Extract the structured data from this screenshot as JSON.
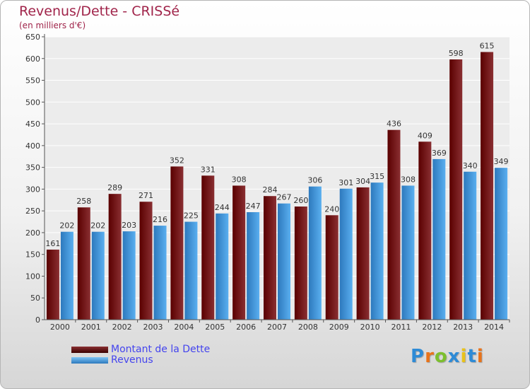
{
  "title": "Revenus/Dette - CRISSé",
  "subtitle": "(en milliers d'€)",
  "colors": {
    "dette_dark": "#5a0000",
    "dette_light": "#8a2f32",
    "revenus_dark": "#2d79bd",
    "revenus_light": "#5aaff0",
    "title": "#a0244a",
    "legend_text": "#4444ee"
  },
  "legend": {
    "items": [
      {
        "label": "Montant de la Dette",
        "color": "#7a1a1c"
      },
      {
        "label": "Revenus",
        "color": "#4ca3e6"
      }
    ],
    "placement": "bottom-left"
  },
  "logo": {
    "text": "Proxiti",
    "colors": [
      "#2e8bd6",
      "#e8731a",
      "#7cbf2e",
      "#2e8bd6",
      "#e8c21a",
      "#2e8bd6",
      "#e8731a"
    ]
  },
  "chart_data": {
    "type": "bar",
    "title": "Revenus/Dette - CRISSé",
    "subtitle": "(en milliers d'€)",
    "xlabel": "",
    "ylabel": "",
    "categories": [
      "2000",
      "2001",
      "2002",
      "2003",
      "2004",
      "2005",
      "2006",
      "2007",
      "2008",
      "2009",
      "2010",
      "2011",
      "2012",
      "2013",
      "2014"
    ],
    "series": [
      {
        "name": "Montant de la Dette",
        "values": [
          161,
          258,
          289,
          271,
          352,
          331,
          308,
          284,
          260,
          240,
          304,
          436,
          409,
          598,
          615
        ]
      },
      {
        "name": "Revenus",
        "values": [
          202,
          202,
          203,
          216,
          225,
          244,
          247,
          267,
          306,
          301,
          315,
          308,
          369,
          340,
          349
        ]
      }
    ],
    "ylim": [
      0,
      650
    ],
    "yticks": [
      0,
      50,
      100,
      150,
      200,
      250,
      300,
      350,
      400,
      450,
      500,
      550,
      600,
      650
    ],
    "grid": true,
    "legend": "bottom-left"
  }
}
